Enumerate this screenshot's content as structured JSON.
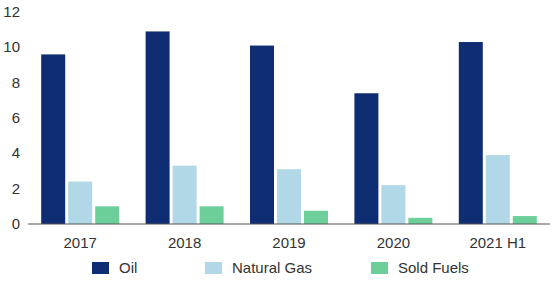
{
  "chart_data": {
    "type": "bar",
    "categories": [
      "2017",
      "2018",
      "2019",
      "2020",
      "2021 H1"
    ],
    "series": [
      {
        "name": "Oil",
        "color": "#0f2d73",
        "values": [
          9.6,
          10.9,
          10.1,
          7.4,
          10.3
        ]
      },
      {
        "name": "Natural Gas",
        "color": "#b1d8e6",
        "values": [
          2.4,
          3.3,
          3.1,
          2.2,
          3.9
        ]
      },
      {
        "name": "Sold Fuels",
        "color": "#6ccf9a",
        "values": [
          1.0,
          1.0,
          0.75,
          0.35,
          0.45
        ]
      }
    ],
    "ylim": [
      0,
      12
    ],
    "yticks": [
      0,
      2,
      4,
      6,
      8,
      10,
      12
    ],
    "grid": false,
    "legend": "bottom"
  }
}
